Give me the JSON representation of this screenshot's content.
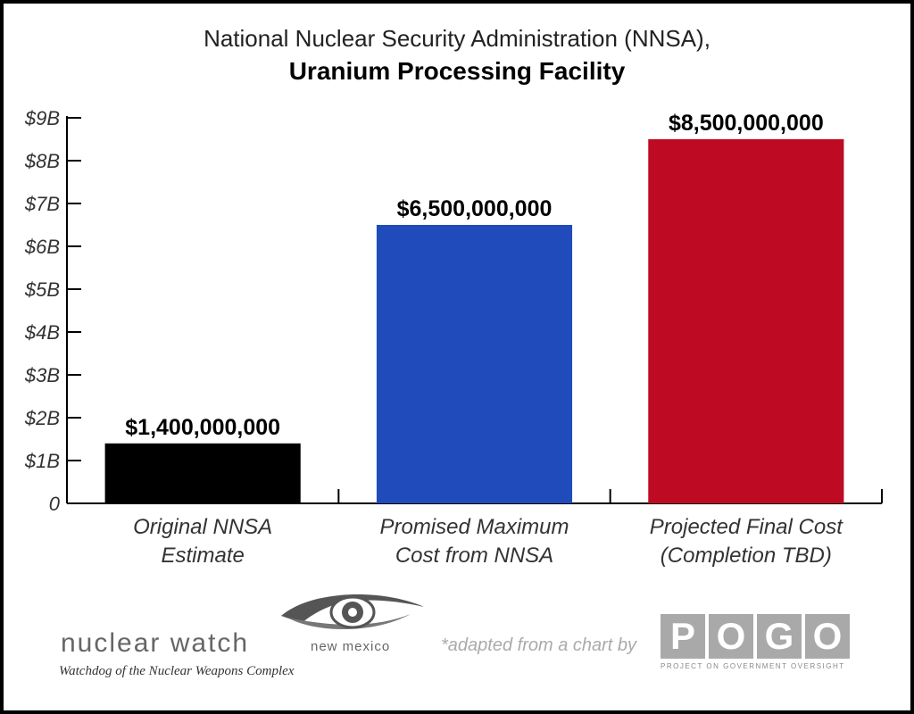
{
  "chart_data": {
    "type": "bar",
    "title": "National Nuclear Security Administration (NNSA),",
    "subtitle": "Uranium Processing Facility",
    "categories": [
      [
        "Original NNSA",
        "Estimate"
      ],
      [
        "Promised Maximum",
        "Cost from NNSA"
      ],
      [
        "Projected Final Cost",
        "(Completion TBD)"
      ]
    ],
    "values": [
      1400000000,
      6500000000,
      8500000000
    ],
    "data_labels": [
      "$1,400,000,000",
      "$6,500,000,000",
      "$8,500,000,000"
    ],
    "colors": [
      "#000000",
      "#1f4bbb",
      "#be0a22"
    ],
    "ylim": [
      0,
      9000000000
    ],
    "yticks": [
      0,
      1000000000,
      2000000000,
      3000000000,
      4000000000,
      5000000000,
      6000000000,
      7000000000,
      8000000000,
      9000000000
    ],
    "ytick_labels": [
      "0",
      "$1B",
      "$2B",
      "$3B",
      "$4B",
      "$5B",
      "$6B",
      "$7B",
      "$8B",
      "$9B"
    ],
    "xlabel": "",
    "ylabel": "",
    "grid": false,
    "legend": "none"
  },
  "footer": {
    "org_name": "nuclear watch",
    "org_region": "new mexico",
    "org_tagline": "Watchdog of the Nuclear Weapons Complex",
    "adapted_note": "*adapted from a chart by",
    "pogo_letters": [
      "P",
      "O",
      "G",
      "O"
    ],
    "pogo_full_name": "PROJECT ON GOVERNMENT OVERSIGHT",
    "eye_icon": "eye-icon"
  }
}
